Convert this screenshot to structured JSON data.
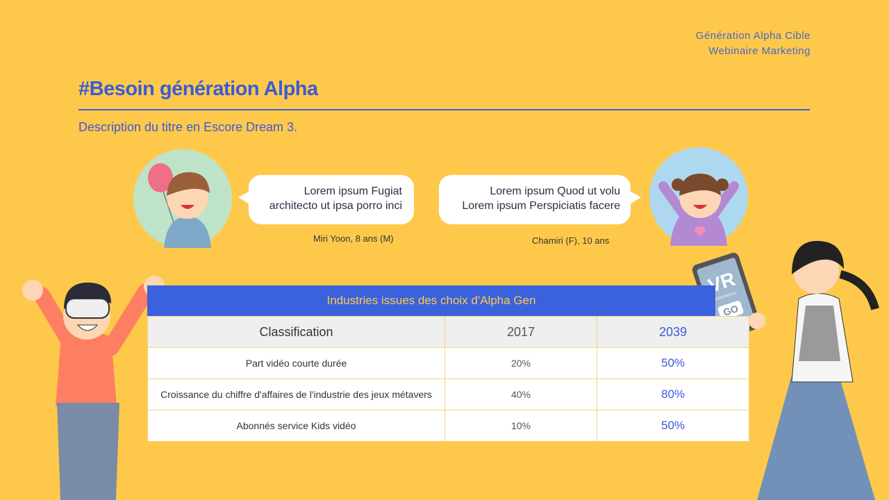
{
  "header": {
    "tag_lines": [
      "Génération Alpha Cible",
      "Webinaire Marketing"
    ],
    "title": "#Besoin génération Alpha",
    "subtitle": "Description du titre en Escore Dream 3."
  },
  "quotes": [
    {
      "lines": [
        "Lorem ipsum Fugiat",
        "architecto ut ipsa porro inci"
      ],
      "caption": "Miri Yoon, 8 ans (M)"
    },
    {
      "lines": [
        "Lorem ipsum Quod ut volu",
        "Lorem ipsum Perspiciatis facere"
      ],
      "caption": "Chamiri (F), 10 ans"
    }
  ],
  "table": {
    "title": "Industries issues des choix d'Alpha Gen",
    "columns": [
      "Classification",
      "2017",
      "2039"
    ],
    "rows": [
      [
        "Part vidéo courte durée",
        "20%",
        "50%"
      ],
      [
        "Croissance du chiffre d'affaires de l'industrie des jeux métavers",
        "40%",
        "80%"
      ],
      [
        "Abonnés service Kids vidéo",
        "10%",
        "50%"
      ]
    ]
  },
  "tablet": {
    "big": "VR",
    "small": "EXPERIENCE",
    "button": "GO"
  }
}
